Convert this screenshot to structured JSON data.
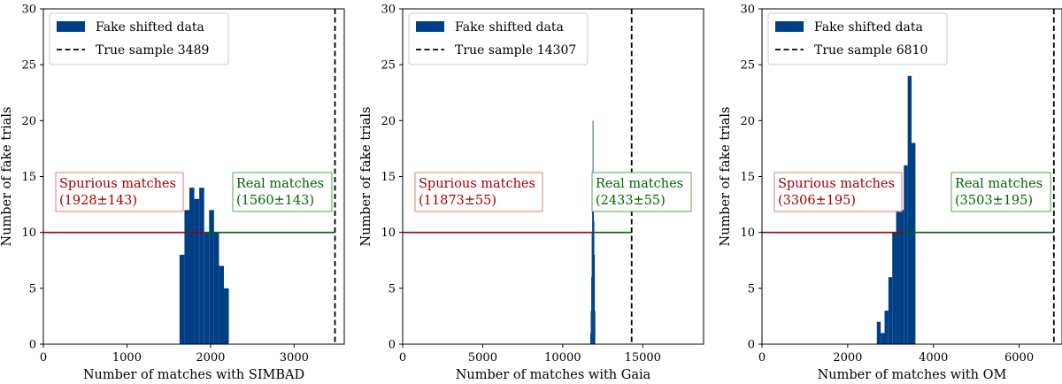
{
  "colors": {
    "bar": "#003f85",
    "true_line": "#000000",
    "spurious": "#a00000",
    "real": "#006400",
    "spurious_box": "#e07a7a",
    "real_box": "#5aa05a"
  },
  "chart_data": [
    {
      "type": "bar",
      "xlabel": "Number of matches with SIMBAD",
      "ylabel": "Number of fake trials",
      "xlim": [
        0,
        3600
      ],
      "ylim": [
        0,
        30
      ],
      "xticks": [
        0,
        1000,
        2000,
        3000
      ],
      "yticks": [
        0,
        5,
        10,
        15,
        20,
        25,
        30
      ],
      "legend": {
        "placement": "top-left",
        "entries": [
          "Fake shifted data",
          "True sample 3489"
        ]
      },
      "true_sample": 3489,
      "hline_y": 10,
      "split_x": 1928,
      "histogram": {
        "bin_edges": [
          1629,
          1688,
          1747,
          1806,
          1865,
          1924,
          1983,
          2042,
          2101,
          2160,
          2219
        ],
        "counts": [
          8,
          12,
          14,
          13,
          14,
          10,
          12,
          10,
          7,
          5
        ]
      },
      "annotations": {
        "spurious": [
          "Spurious matches",
          "(1928±143)"
        ],
        "real": [
          "Real matches",
          "(1560±143)"
        ]
      }
    },
    {
      "type": "bar",
      "xlabel": "Number of matches with Gaia",
      "ylabel": "Number of fake trials",
      "xlim": [
        0,
        18800
      ],
      "ylim": [
        0,
        30
      ],
      "xticks": [
        0,
        5000,
        10000,
        15000
      ],
      "yticks": [
        0,
        5,
        10,
        15,
        20,
        25,
        30
      ],
      "legend": {
        "placement": "top-left",
        "entries": [
          "Fake shifted data",
          "True sample 14307"
        ]
      },
      "true_sample": 14307,
      "hline_y": 10,
      "split_x": 11873,
      "histogram": {
        "bin_edges": [
          11720,
          11750,
          11780,
          11810,
          11840,
          11870,
          11900,
          11930,
          11960,
          11990,
          12020
        ],
        "counts": [
          1,
          3,
          6,
          10,
          13,
          20,
          13,
          11,
          8,
          3
        ]
      },
      "annotations": {
        "spurious": [
          "Spurious matches",
          "(11873±55)"
        ],
        "real": [
          "Real matches",
          "(2433±55)"
        ]
      }
    },
    {
      "type": "bar",
      "xlabel": "Number of matches with OM",
      "ylabel": "Number of fake trials",
      "xlim": [
        0,
        7000
      ],
      "ylim": [
        0,
        30
      ],
      "xticks": [
        0,
        2000,
        4000,
        6000
      ],
      "yticks": [
        0,
        5,
        10,
        15,
        20,
        25,
        30
      ],
      "legend": {
        "placement": "top-left",
        "entries": [
          "Fake shifted data",
          "True sample 6810"
        ]
      },
      "true_sample": 6810,
      "hline_y": 10,
      "split_x": 3306,
      "histogram": {
        "bin_edges": [
          2680,
          2770,
          2860,
          2950,
          3040,
          3130,
          3220,
          3310,
          3400,
          3490,
          3580
        ],
        "counts": [
          2,
          1,
          3,
          6,
          10,
          13,
          12,
          16,
          24,
          18
        ]
      },
      "annotations": {
        "spurious": [
          "Spurious matches",
          "(3306±195)"
        ],
        "real": [
          "Real matches",
          "(3503±195)"
        ]
      }
    }
  ]
}
